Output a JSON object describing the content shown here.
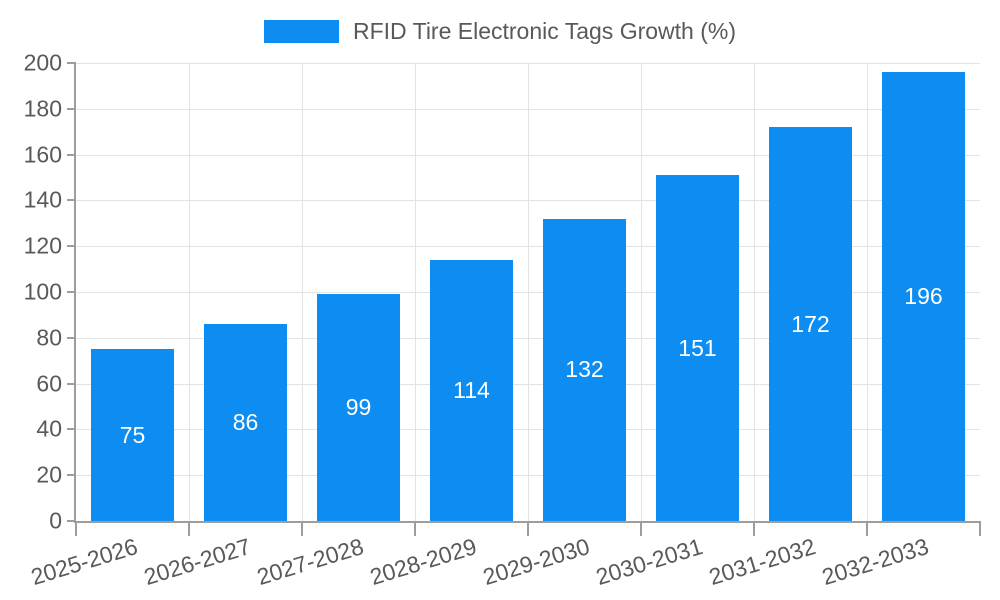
{
  "legend": {
    "label": "RFID Tire Electronic Tags Growth (%)"
  },
  "colors": {
    "bar": "#0d8df2",
    "grid": "#e3e3e3",
    "axis": "#9d9d9d",
    "tick_text": "#595959",
    "bar_label": "#ffffff",
    "background": "#ffffff"
  },
  "chart_data": {
    "type": "bar",
    "title": "RFID Tire Electronic Tags Growth (%)",
    "categories": [
      "2025-2026",
      "2026-2027",
      "2027-2028",
      "2028-2029",
      "2029-2030",
      "2030-2031",
      "2031-2032",
      "2032-2033"
    ],
    "values": [
      75,
      86,
      99,
      114,
      132,
      151,
      172,
      196
    ],
    "xlabel": "",
    "ylabel": "",
    "ylim": [
      0,
      200
    ],
    "ytick_step": 20,
    "yticks": [
      0,
      20,
      40,
      60,
      80,
      100,
      120,
      140,
      160,
      180,
      200
    ],
    "grid": true,
    "gridlines": "horizontal-and-vertical",
    "legend_position": "top-center",
    "value_label_position": "inside-center",
    "x_label_rotation_deg": -17
  }
}
